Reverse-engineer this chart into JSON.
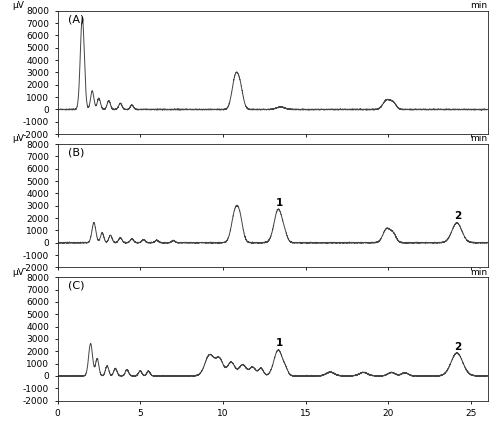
{
  "xlim": [
    0,
    26
  ],
  "ylim": [
    -2000,
    8000
  ],
  "yticks": [
    -2000,
    -1000,
    0,
    1000,
    2000,
    3000,
    4000,
    5000,
    6000,
    7000,
    8000
  ],
  "xticks": [
    0,
    5,
    10,
    15,
    20,
    25
  ],
  "xlabel": "min",
  "ylabel": "μV",
  "panel_labels": [
    "(A)",
    "(B)",
    "(C)"
  ],
  "line_color": "#444444",
  "line_width": 0.7,
  "background_color": "#ffffff",
  "font_size": 6.5,
  "label_font_size": 7.5,
  "peak_labels_B": [
    [
      "1",
      13.4,
      2700
    ],
    [
      "2",
      24.2,
      1600
    ]
  ],
  "peak_labels_C": [
    [
      "1",
      13.4,
      2100
    ],
    [
      "2",
      24.2,
      1800
    ]
  ]
}
